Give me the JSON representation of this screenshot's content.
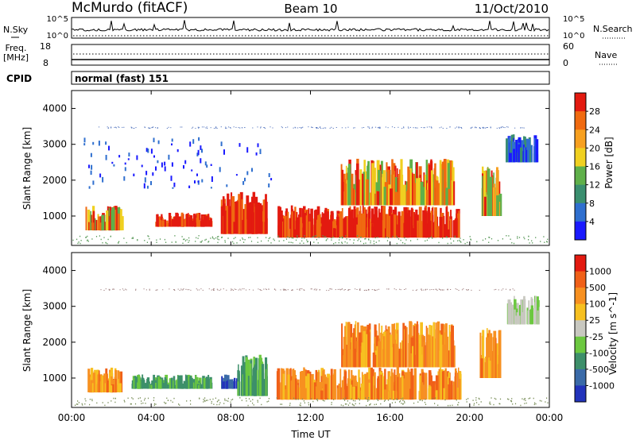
{
  "header": {
    "station": "McMurdo (fitACF)",
    "beam": "Beam 10",
    "date": "11/Oct/2010"
  },
  "top_panels": {
    "nsky_label": "N.Sky",
    "nsky_ticks": [
      "10^5",
      "10^0"
    ],
    "nsearch_label": "N.Search",
    "nsearch_ticks": [
      "10^5",
      "10^0"
    ],
    "freq_label": [
      "Freq.",
      "[MHz]"
    ],
    "freq_ticks": [
      "18",
      "8"
    ],
    "nave_label": "Nave",
    "nave_ticks": [
      "60",
      "0"
    ],
    "cpid_label": "CPID",
    "cpid_value": "normal (fast) 151"
  },
  "chart_data": [
    {
      "type": "heatmap",
      "name": "power-panel",
      "ylabel": "Slant Range [km]",
      "xlabel": "Time UT",
      "x_ticks": [
        "00:00",
        "04:00",
        "08:00",
        "12:00",
        "16:00",
        "20:00",
        "00:00"
      ],
      "x_range_hours": [
        0,
        24
      ],
      "y_ticks": [
        1000,
        2000,
        3000,
        4000
      ],
      "ylim": [
        180,
        4500
      ],
      "colorbar": {
        "label": "Power [dB]",
        "ticks": [
          "4",
          "8",
          "12",
          "16",
          "20",
          "24",
          "28"
        ],
        "colors": [
          "#1a1aff",
          "#2f6fcf",
          "#3a8f6f",
          "#5fb04a",
          "#f0d020",
          "#f7a020",
          "#f06a10",
          "#e31a10"
        ]
      },
      "echo_regions": [
        {
          "t_start": 0.7,
          "t_end": 2.5,
          "r_low": 600,
          "r_high": 1300,
          "level": "24-28"
        },
        {
          "t_start": 4.2,
          "t_end": 7.0,
          "r_low": 700,
          "r_high": 1100,
          "level": "28"
        },
        {
          "t_start": 7.5,
          "t_end": 9.8,
          "r_low": 500,
          "r_high": 1700,
          "level": "28"
        },
        {
          "t_start": 10.3,
          "t_end": 19.5,
          "r_low": 400,
          "r_high": 1300,
          "level": "28"
        },
        {
          "t_start": 13.5,
          "t_end": 19.2,
          "r_low": 1300,
          "r_high": 2600,
          "level": "24-28"
        },
        {
          "t_start": 20.5,
          "t_end": 21.5,
          "r_low": 1000,
          "r_high": 2400,
          "level": "20-28"
        },
        {
          "t_start": 21.8,
          "t_end": 23.4,
          "r_low": 2500,
          "r_high": 3300,
          "level": "4-12"
        },
        {
          "t_start": 0.5,
          "t_end": 10.0,
          "r_low": 1800,
          "r_high": 3200,
          "level": "4-8"
        }
      ]
    },
    {
      "type": "heatmap",
      "name": "velocity-panel",
      "ylabel": "Slant Range [km]",
      "xlabel": "Time UT",
      "x_ticks": [
        "00:00",
        "04:00",
        "08:00",
        "12:00",
        "16:00",
        "20:00",
        "00:00"
      ],
      "x_range_hours": [
        0,
        24
      ],
      "y_ticks": [
        1000,
        2000,
        3000,
        4000
      ],
      "ylim": [
        180,
        4500
      ],
      "colorbar": {
        "label": "Velocity [m s^-1]",
        "ticks": [
          "1000",
          "500",
          "100",
          "25",
          "-25",
          "-100",
          "-500",
          "-1000"
        ],
        "colors": [
          "#2233bb",
          "#3a6aa8",
          "#3d8f6a",
          "#6cc840",
          "#c8c8c0",
          "#f7c020",
          "#f79020",
          "#f06018",
          "#e31a10"
        ]
      },
      "echo_regions": [
        {
          "t_start": 0.7,
          "t_end": 2.5,
          "r_low": 600,
          "r_high": 1300,
          "velocity": "-100 to -500"
        },
        {
          "t_start": 3.0,
          "t_end": 7.0,
          "r_low": 700,
          "r_high": 1100,
          "velocity": "100 to 500"
        },
        {
          "t_start": 7.5,
          "t_end": 8.3,
          "r_low": 700,
          "r_high": 1100,
          "velocity": "500 to 1000"
        },
        {
          "t_start": 8.3,
          "t_end": 9.8,
          "r_low": 500,
          "r_high": 1700,
          "velocity": "100 to 500"
        },
        {
          "t_start": 10.3,
          "t_end": 19.5,
          "r_low": 400,
          "r_high": 1300,
          "velocity": "-100 to -500"
        },
        {
          "t_start": 13.5,
          "t_end": 19.2,
          "r_low": 1300,
          "r_high": 2600,
          "velocity": "-100 to -500"
        },
        {
          "t_start": 20.5,
          "t_end": 21.5,
          "r_low": 1000,
          "r_high": 2400,
          "velocity": "-100 to -500"
        },
        {
          "t_start": 21.8,
          "t_end": 23.4,
          "r_low": 2500,
          "r_high": 3300,
          "velocity": "-25 to 25"
        }
      ]
    }
  ]
}
